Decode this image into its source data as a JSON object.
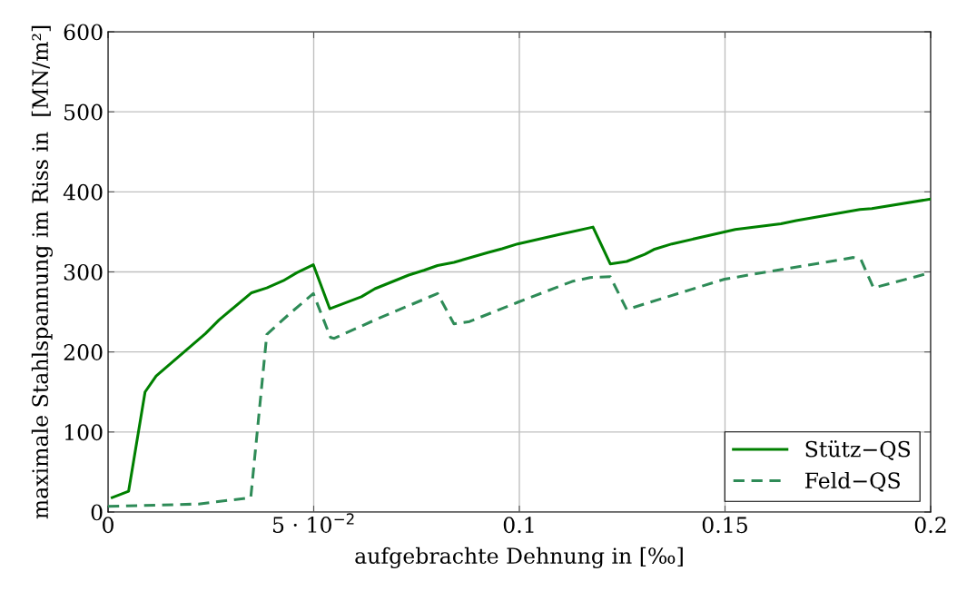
{
  "chart_data": {
    "type": "line",
    "xlabel": "aufgebrachte Dehnung in [‰]",
    "ylabel": "maximale Stahlspannung im Riss in  [MN/m²]",
    "xlim": [
      0,
      0.2
    ],
    "ylim": [
      0,
      600
    ],
    "xticks": [
      0,
      {
        "value": 0.05,
        "label": "5 · 10$^{−2}$"
      },
      0.1,
      0.15,
      0.2
    ],
    "yticks": [
      0,
      100,
      200,
      300,
      400,
      500,
      600
    ],
    "grid": true,
    "legend": "bottom right",
    "series": [
      {
        "name": "Stütz−QS",
        "color": "#008000",
        "line_style": "solid",
        "x": [
          0.001,
          0.005,
          0.009,
          0.0117,
          0.0237,
          0.027,
          0.0349,
          0.0386,
          0.0426,
          0.0459,
          0.0499,
          0.0539,
          0.0616,
          0.0649,
          0.0731,
          0.0768,
          0.0801,
          0.0841,
          0.0923,
          0.0958,
          0.0996,
          0.11,
          0.1179,
          0.1221,
          0.1261,
          0.1305,
          0.1327,
          0.1371,
          0.1525,
          0.1636,
          0.1673,
          0.1828,
          0.1857,
          0.2
        ],
        "values": [
          18,
          26,
          150,
          170,
          223,
          240,
          274,
          280,
          289,
          299,
          309,
          254,
          269,
          279,
          296,
          302,
          308,
          312,
          324,
          329,
          335,
          347,
          356,
          310,
          313,
          322,
          328,
          335,
          353,
          360,
          364,
          378,
          379,
          391
        ]
      },
      {
        "name": "Feld−QS",
        "color": "#2e8b57",
        "line_style": "dashed",
        "x": [
          0,
          0.022,
          0.0347,
          0.0386,
          0.0442,
          0.0499,
          0.0541,
          0.055,
          0.0649,
          0.0801,
          0.0841,
          0.0879,
          0.0996,
          0.1128,
          0.1172,
          0.1221,
          0.1261,
          0.1499,
          0.1812,
          0.183,
          0.1861,
          0.2
        ],
        "values": [
          7,
          10,
          18,
          222,
          248,
          273,
          218,
          217,
          240,
          273,
          235,
          238,
          262,
          288,
          293,
          294,
          253,
          291,
          318,
          316,
          280,
          299
        ]
      }
    ]
  }
}
